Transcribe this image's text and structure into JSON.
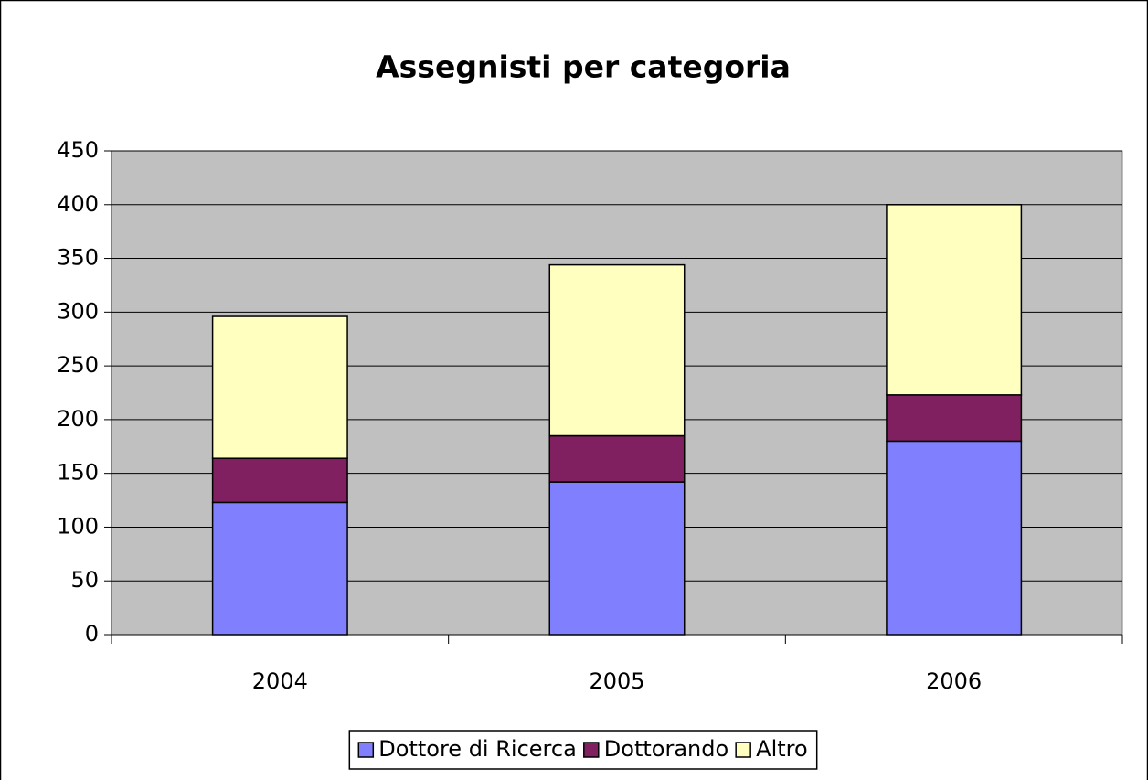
{
  "chart_data": {
    "type": "bar",
    "stacked": true,
    "title": "Assegnisti per categoria",
    "categories": [
      "2004",
      "2005",
      "2006"
    ],
    "series": [
      {
        "name": "Dottore di Ricerca",
        "color": "#8080ff",
        "values": [
          123,
          142,
          180
        ]
      },
      {
        "name": "Dottorando",
        "color": "#802060",
        "values": [
          41,
          43,
          43
        ]
      },
      {
        "name": "Altro",
        "color": "#ffffc0",
        "values": [
          132,
          159,
          177
        ]
      }
    ],
    "ylim": [
      0,
      450
    ],
    "yticks": [
      0,
      50,
      100,
      150,
      200,
      250,
      300,
      350,
      400,
      450
    ],
    "grid": true,
    "legend": "bottom",
    "plot_background": "#c0c0c0"
  }
}
